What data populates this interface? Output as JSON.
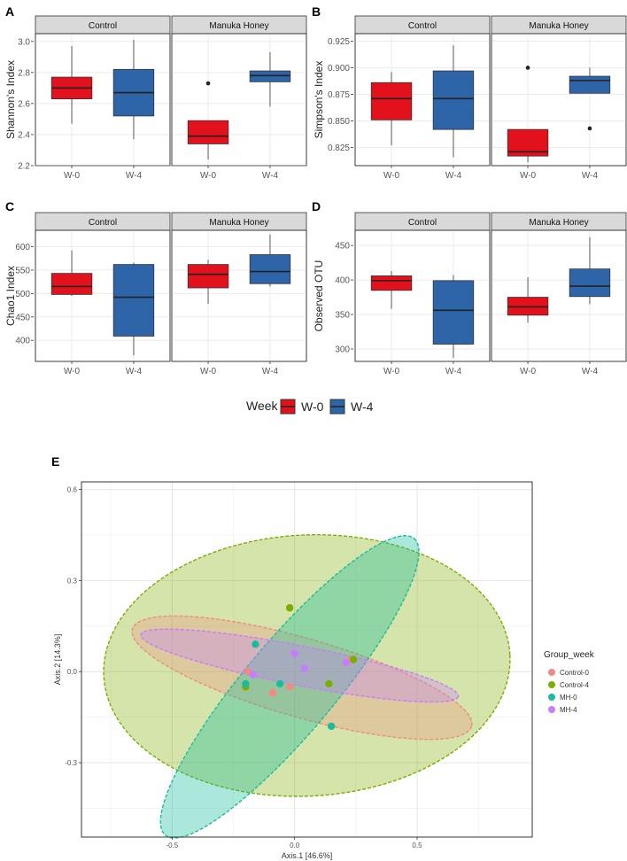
{
  "colors": {
    "w0": "#e3111b",
    "w4": "#2e64a8",
    "strip": "#d9d9d9",
    "control0": "#f08a82",
    "control4": "#7cae00",
    "mh0": "#1abc9c",
    "mh4": "#c77cff"
  },
  "legend_week": {
    "title": "Week",
    "items": [
      "W-0",
      "W-4"
    ]
  },
  "legend_group": {
    "title": "Group_week",
    "items": [
      "Control-0",
      "Control-4",
      "MH-0",
      "MH-4"
    ]
  },
  "chart_data": [
    {
      "type": "box",
      "panel": "A",
      "ylabel": "Shannon's Index",
      "facets": [
        "Control",
        "Manuka Honey"
      ],
      "categories": [
        "W-0",
        "W-4"
      ],
      "yticks": [
        "2.2",
        "2.4",
        "2.6",
        "2.8",
        "3.0"
      ],
      "ylim": [
        2.2,
        3.05
      ],
      "boxes": [
        {
          "facet": 0,
          "cat": 0,
          "week": "W-0",
          "min": 2.47,
          "q1": 2.63,
          "median": 2.7,
          "q3": 2.77,
          "max": 2.97,
          "outliers": []
        },
        {
          "facet": 0,
          "cat": 1,
          "week": "W-4",
          "min": 2.37,
          "q1": 2.52,
          "median": 2.67,
          "q3": 2.82,
          "max": 3.01,
          "outliers": []
        },
        {
          "facet": 1,
          "cat": 0,
          "week": "W-0",
          "min": 2.24,
          "q1": 2.34,
          "median": 2.39,
          "q3": 2.49,
          "max": 2.49,
          "outliers": [
            2.73
          ]
        },
        {
          "facet": 1,
          "cat": 1,
          "week": "W-4",
          "min": 2.58,
          "q1": 2.74,
          "median": 2.78,
          "q3": 2.81,
          "max": 2.93,
          "outliers": []
        }
      ]
    },
    {
      "type": "box",
      "panel": "B",
      "ylabel": "Simpson's Index",
      "facets": [
        "Control",
        "Manuka Honey"
      ],
      "categories": [
        "W-0",
        "W-4"
      ],
      "yticks": [
        "0.825",
        "0.850",
        "0.875",
        "0.900",
        "0.925"
      ],
      "ylim": [
        0.808,
        0.932
      ],
      "boxes": [
        {
          "facet": 0,
          "cat": 0,
          "week": "W-0",
          "min": 0.827,
          "q1": 0.851,
          "median": 0.871,
          "q3": 0.886,
          "max": 0.896,
          "outliers": []
        },
        {
          "facet": 0,
          "cat": 1,
          "week": "W-4",
          "min": 0.816,
          "q1": 0.842,
          "median": 0.871,
          "q3": 0.897,
          "max": 0.921,
          "outliers": []
        },
        {
          "facet": 1,
          "cat": 0,
          "week": "W-0",
          "min": 0.811,
          "q1": 0.817,
          "median": 0.821,
          "q3": 0.842,
          "max": 0.842,
          "outliers": [
            0.9
          ]
        },
        {
          "facet": 1,
          "cat": 1,
          "week": "W-4",
          "min": 0.876,
          "q1": 0.876,
          "median": 0.888,
          "q3": 0.892,
          "max": 0.9,
          "outliers": [
            0.843
          ]
        }
      ]
    },
    {
      "type": "box",
      "panel": "C",
      "ylabel": "Chao1 Index",
      "facets": [
        "Control",
        "Manuka Honey"
      ],
      "categories": [
        "W-0",
        "W-4"
      ],
      "yticks": [
        "400",
        "450",
        "500",
        "550",
        "600"
      ],
      "ylim": [
        355,
        635
      ],
      "boxes": [
        {
          "facet": 0,
          "cat": 0,
          "week": "W-0",
          "min": 495,
          "q1": 498,
          "median": 515,
          "q3": 543,
          "max": 592,
          "outliers": []
        },
        {
          "facet": 0,
          "cat": 1,
          "week": "W-4",
          "min": 368,
          "q1": 409,
          "median": 492,
          "q3": 562,
          "max": 566,
          "outliers": []
        },
        {
          "facet": 1,
          "cat": 0,
          "week": "W-0",
          "min": 478,
          "q1": 512,
          "median": 541,
          "q3": 562,
          "max": 572,
          "outliers": []
        },
        {
          "facet": 1,
          "cat": 1,
          "week": "W-4",
          "min": 515,
          "q1": 521,
          "median": 547,
          "q3": 583,
          "max": 626,
          "outliers": []
        }
      ]
    },
    {
      "type": "box",
      "panel": "D",
      "ylabel": "Observed OTU",
      "facets": [
        "Control",
        "Manuka Honey"
      ],
      "categories": [
        "W-0",
        "W-4"
      ],
      "yticks": [
        "300",
        "350",
        "400",
        "450"
      ],
      "ylim": [
        282,
        472
      ],
      "boxes": [
        {
          "facet": 0,
          "cat": 0,
          "week": "W-0",
          "min": 358,
          "q1": 385,
          "median": 399,
          "q3": 406,
          "max": 413,
          "outliers": []
        },
        {
          "facet": 0,
          "cat": 1,
          "week": "W-4",
          "min": 287,
          "q1": 307,
          "median": 356,
          "q3": 399,
          "max": 407,
          "outliers": []
        },
        {
          "facet": 1,
          "cat": 0,
          "week": "W-0",
          "min": 338,
          "q1": 349,
          "median": 361,
          "q3": 375,
          "max": 404,
          "outliers": []
        },
        {
          "facet": 1,
          "cat": 1,
          "week": "W-4",
          "min": 365,
          "q1": 376,
          "median": 391,
          "q3": 416,
          "max": 462,
          "outliers": []
        }
      ]
    },
    {
      "type": "scatter",
      "panel": "E",
      "xlabel": "Axis.1   [46.6%]",
      "ylabel": "Axis.2   [14.3%]",
      "xticks": [
        "-0.5",
        "0.0",
        "0.5"
      ],
      "yticks": [
        "-0.3",
        "0.0",
        "0.3",
        "0.6"
      ],
      "xlim": [
        -0.87,
        0.97
      ],
      "ylim": [
        -0.545,
        0.625
      ],
      "points": [
        {
          "group": "Control-0",
          "x": -0.19,
          "y": 0.0
        },
        {
          "group": "Control-0",
          "x": -0.09,
          "y": -0.07
        },
        {
          "group": "Control-0",
          "x": -0.02,
          "y": -0.05
        },
        {
          "group": "Control-0",
          "x": 0.23,
          "y": 0.04
        },
        {
          "group": "Control-4",
          "x": -0.2,
          "y": -0.05
        },
        {
          "group": "Control-4",
          "x": -0.02,
          "y": 0.21
        },
        {
          "group": "Control-4",
          "x": 0.14,
          "y": -0.04
        },
        {
          "group": "Control-4",
          "x": 0.24,
          "y": 0.04
        },
        {
          "group": "MH-0",
          "x": -0.2,
          "y": -0.04
        },
        {
          "group": "MH-0",
          "x": -0.16,
          "y": 0.09
        },
        {
          "group": "MH-0",
          "x": -0.06,
          "y": -0.04
        },
        {
          "group": "MH-0",
          "x": 0.15,
          "y": -0.18
        },
        {
          "group": "MH-4",
          "x": -0.17,
          "y": -0.01
        },
        {
          "group": "MH-4",
          "x": 0.0,
          "y": 0.06
        },
        {
          "group": "MH-4",
          "x": 0.04,
          "y": 0.01
        },
        {
          "group": "MH-4",
          "x": 0.21,
          "y": 0.03
        }
      ],
      "ellipses": [
        {
          "group": "Control-4",
          "cx": 0.05,
          "cy": 0.02,
          "rx": 0.83,
          "ry": 0.43,
          "angle_deg": -3
        },
        {
          "group": "Control-0",
          "cx": 0.03,
          "cy": -0.02,
          "rx": 0.72,
          "ry": 0.13,
          "angle_deg": 16
        },
        {
          "group": "MH-0",
          "cx": -0.02,
          "cy": -0.05,
          "rx": 0.79,
          "ry": 0.15,
          "angle_deg": -50
        },
        {
          "group": "MH-4",
          "cx": 0.02,
          "cy": 0.02,
          "rx": 0.66,
          "ry": 0.065,
          "angle_deg": 11
        }
      ]
    }
  ]
}
